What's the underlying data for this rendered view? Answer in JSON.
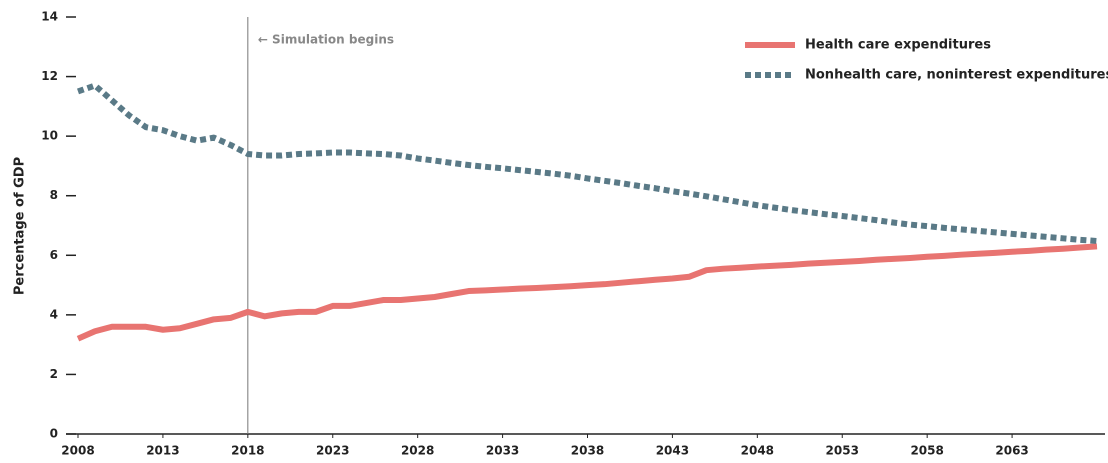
{
  "chart_data": {
    "type": "line",
    "y_label": "Percentage of GDP",
    "annotation": {
      "text": "← Simulation begins",
      "x": 2018
    },
    "x": [
      2008,
      2009,
      2010,
      2011,
      2012,
      2013,
      2014,
      2015,
      2016,
      2017,
      2018,
      2019,
      2020,
      2021,
      2022,
      2023,
      2024,
      2025,
      2026,
      2027,
      2028,
      2029,
      2030,
      2031,
      2032,
      2033,
      2034,
      2035,
      2036,
      2037,
      2038,
      2039,
      2040,
      2041,
      2042,
      2043,
      2044,
      2045,
      2046,
      2047,
      2048,
      2049,
      2050,
      2051,
      2052,
      2053,
      2054,
      2055,
      2056,
      2057,
      2058,
      2059,
      2060,
      2061,
      2062,
      2063,
      2064,
      2065,
      2066,
      2067,
      2068
    ],
    "series": [
      {
        "name": "Health care expenditures",
        "color": "#e87471",
        "style": "solid",
        "values": [
          3.2,
          3.45,
          3.6,
          3.6,
          3.6,
          3.5,
          3.55,
          3.7,
          3.85,
          3.9,
          4.1,
          3.95,
          4.05,
          4.1,
          4.1,
          4.3,
          4.3,
          4.4,
          4.5,
          4.5,
          4.55,
          4.6,
          4.7,
          4.8,
          4.82,
          4.85,
          4.88,
          4.9,
          4.93,
          4.96,
          5.0,
          5.03,
          5.08,
          5.13,
          5.18,
          5.22,
          5.28,
          5.5,
          5.55,
          5.58,
          5.62,
          5.65,
          5.68,
          5.72,
          5.75,
          5.78,
          5.81,
          5.85,
          5.88,
          5.91,
          5.95,
          5.98,
          6.02,
          6.05,
          6.08,
          6.12,
          6.15,
          6.19,
          6.22,
          6.26,
          6.3
        ]
      },
      {
        "name": "Nonhealth care, noninterest expenditures",
        "color": "#5a7a87",
        "style": "dotted",
        "values": [
          11.5,
          11.7,
          11.2,
          10.7,
          10.3,
          10.2,
          10.0,
          9.85,
          9.95,
          9.7,
          9.4,
          9.35,
          9.35,
          9.4,
          9.42,
          9.45,
          9.45,
          9.42,
          9.4,
          9.35,
          9.25,
          9.18,
          9.1,
          9.03,
          8.97,
          8.92,
          8.86,
          8.8,
          8.74,
          8.67,
          8.58,
          8.5,
          8.42,
          8.33,
          8.25,
          8.15,
          8.07,
          7.98,
          7.88,
          7.78,
          7.68,
          7.6,
          7.52,
          7.45,
          7.38,
          7.32,
          7.25,
          7.18,
          7.1,
          7.03,
          6.98,
          6.92,
          6.87,
          6.82,
          6.77,
          6.72,
          6.67,
          6.62,
          6.57,
          6.52,
          6.48
        ]
      }
    ],
    "xlim": [
      2008,
      2068
    ],
    "xticks": [
      2008,
      2013,
      2018,
      2023,
      2028,
      2033,
      2038,
      2043,
      2048,
      2053,
      2058,
      2063
    ],
    "ylim": [
      0,
      14
    ],
    "yticks": [
      0,
      2,
      4,
      6,
      8,
      10,
      12,
      14
    ],
    "grid": false,
    "legend": "top-right"
  }
}
